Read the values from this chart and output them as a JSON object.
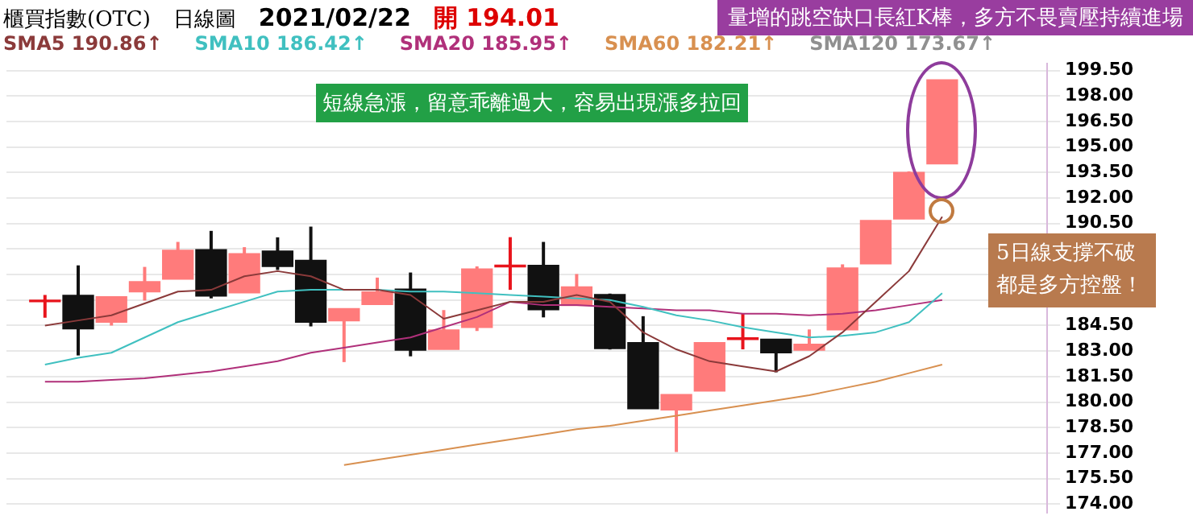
{
  "chart_data": {
    "type": "candlestick",
    "title": "櫃買指數(OTC)",
    "subtitle": "日線圖",
    "annotations": [
      "2021/02/22",
      "開 194.01",
      "量增的跳空缺口長紅K棒，多方不畏賣壓持續進場",
      "短線急漲，留意乖離過大，容易出現漲多拉回",
      "5日線支撐不破都是多方控盤！",
      "SMA120 173.67↑"
    ],
    "categories": [
      null,
      null,
      null,
      null,
      null,
      null,
      null,
      null,
      null,
      null,
      null,
      null,
      null,
      null,
      null,
      null,
      null,
      null,
      null,
      null,
      null,
      null,
      null,
      null,
      null,
      null,
      null,
      null
    ],
    "ohlc": [
      [
        185.9,
        186.3,
        184.96,
        186.0
      ],
      [
        186.28,
        188.04,
        182.74,
        184.3
      ],
      [
        184.69,
        186.19,
        184.5,
        186.19
      ],
      [
        186.48,
        187.95,
        185.97,
        187.08
      ],
      [
        187.23,
        189.42,
        187.23,
        188.93
      ],
      [
        188.97,
        190.07,
        186.1,
        186.24
      ],
      [
        186.42,
        189.11,
        186.42,
        188.73
      ],
      [
        188.88,
        189.69,
        187.77,
        187.98
      ],
      [
        188.34,
        190.32,
        184.45,
        184.69
      ],
      [
        184.78,
        185.5,
        182.35,
        185.5
      ],
      [
        185.74,
        187.32,
        185.74,
        186.48
      ],
      [
        186.64,
        187.62,
        182.69,
        183.05
      ],
      [
        183.1,
        185.41,
        183.1,
        184.24
      ],
      [
        184.39,
        187.98,
        184.18,
        187.83
      ],
      [
        187.95,
        189.7,
        186.6,
        188.05
      ],
      [
        188.04,
        189.42,
        184.98,
        185.43
      ],
      [
        185.68,
        187.53,
        185.68,
        186.78
      ],
      [
        186.33,
        186.38,
        183.09,
        183.14
      ],
      [
        183.5,
        185.05,
        179.6,
        179.6
      ],
      [
        179.54,
        180.44,
        177.06,
        180.44
      ],
      [
        180.65,
        183.5,
        180.65,
        183.5
      ],
      [
        183.68,
        185.23,
        183.1,
        183.78
      ],
      [
        183.7,
        183.7,
        181.75,
        182.9
      ],
      [
        183.05,
        184.27,
        183.05,
        183.4
      ],
      [
        184.24,
        188.1,
        184.24,
        187.89
      ],
      [
        188.13,
        190.68,
        188.13,
        190.68
      ],
      [
        190.77,
        193.57,
        190.77,
        193.51
      ],
      [
        194.01,
        198.95,
        194.01,
        198.95
      ]
    ],
    "colors": [
      "#e8141c",
      "#111111",
      "#ff7b7b",
      "#ff7b7b",
      "#ff7b7b",
      "#111111",
      "#ff7b7b",
      "#111111",
      "#111111",
      "#ff7b7b",
      "#ff7b7b",
      "#111111",
      "#ff7b7b",
      "#ff7b7b",
      "#e8141c",
      "#111111",
      "#ff7b7b",
      "#111111",
      "#111111",
      "#ff7b7b",
      "#ff7b7b",
      "#e8141c",
      "#111111",
      "#ff7b7b",
      "#ff7b7b",
      "#ff7b7b",
      "#ff7b7b",
      "#ff7b7b"
    ],
    "series": [
      {
        "name": "SMA5 190.86↑",
        "type": "line",
        "color": "#8b3a3a",
        "values": [
          184.5,
          184.8,
          185.1,
          185.8,
          186.5,
          186.6,
          187.4,
          187.7,
          187.4,
          186.6,
          186.6,
          186.3,
          184.9,
          185.4,
          185.9,
          185.9,
          186.3,
          185.9,
          184.1,
          183.1,
          182.4,
          182.1,
          181.8,
          182.7,
          184.1,
          185.9,
          187.7,
          190.9
        ]
      },
      {
        "name": "SMA10 186.42↑",
        "type": "line",
        "color": "#40c0c0",
        "values": [
          182.2,
          182.6,
          182.9,
          183.8,
          184.7,
          185.3,
          185.9,
          186.5,
          186.6,
          186.6,
          186.6,
          186.5,
          186.5,
          186.4,
          186.3,
          186.2,
          186.1,
          186.0,
          185.6,
          185.1,
          184.8,
          184.4,
          184.1,
          183.8,
          183.9,
          184.1,
          184.7,
          186.4
        ]
      },
      {
        "name": "SMA20 185.95↑",
        "type": "line",
        "color": "#b0307a",
        "values": [
          181.2,
          181.2,
          181.3,
          181.4,
          181.6,
          181.8,
          182.1,
          182.4,
          182.9,
          183.2,
          183.5,
          183.8,
          184.4,
          185.0,
          185.9,
          185.7,
          185.7,
          185.6,
          185.5,
          185.4,
          185.4,
          185.2,
          185.2,
          185.1,
          185.2,
          185.4,
          185.7,
          186.0
        ]
      },
      {
        "name": "SMA60 182.21↑",
        "type": "line",
        "color": "#d89050",
        "values": [
          null,
          null,
          null,
          null,
          null,
          null,
          null,
          null,
          null,
          176.3,
          176.6,
          176.9,
          177.2,
          177.5,
          177.8,
          178.1,
          178.4,
          178.6,
          178.9,
          179.2,
          179.5,
          179.8,
          180.1,
          180.4,
          180.8,
          181.2,
          181.7,
          182.2
        ]
      }
    ],
    "ylim": [
      173.5,
      199.9
    ],
    "yticks": [
      {
        "value": 174,
        "label": "174.00"
      },
      {
        "value": 175.5,
        "label": "175.50"
      },
      {
        "value": 177,
        "label": "177.00"
      },
      {
        "value": 178.5,
        "label": "178.50"
      },
      {
        "value": 180,
        "label": "180.00"
      },
      {
        "value": 181.5,
        "label": "181.50"
      },
      {
        "value": 183,
        "label": "183.00"
      },
      {
        "value": 184.5,
        "label": "184.50"
      },
      {
        "value": 186,
        "label": null
      },
      {
        "value": 187.5,
        "label": null
      },
      {
        "value": 189,
        "label": null
      },
      {
        "value": 190.5,
        "label": "190.50"
      },
      {
        "value": 192,
        "label": "192.00"
      },
      {
        "value": 193.5,
        "label": "193.50"
      },
      {
        "value": 195,
        "label": "195.00"
      },
      {
        "value": 196.5,
        "label": "196.50"
      },
      {
        "value": 198,
        "label": "198.00"
      },
      {
        "value": 199.5,
        "label": "199.50"
      }
    ],
    "grid": "y",
    "tick_labels": "y",
    "legend": "top left"
  }
}
